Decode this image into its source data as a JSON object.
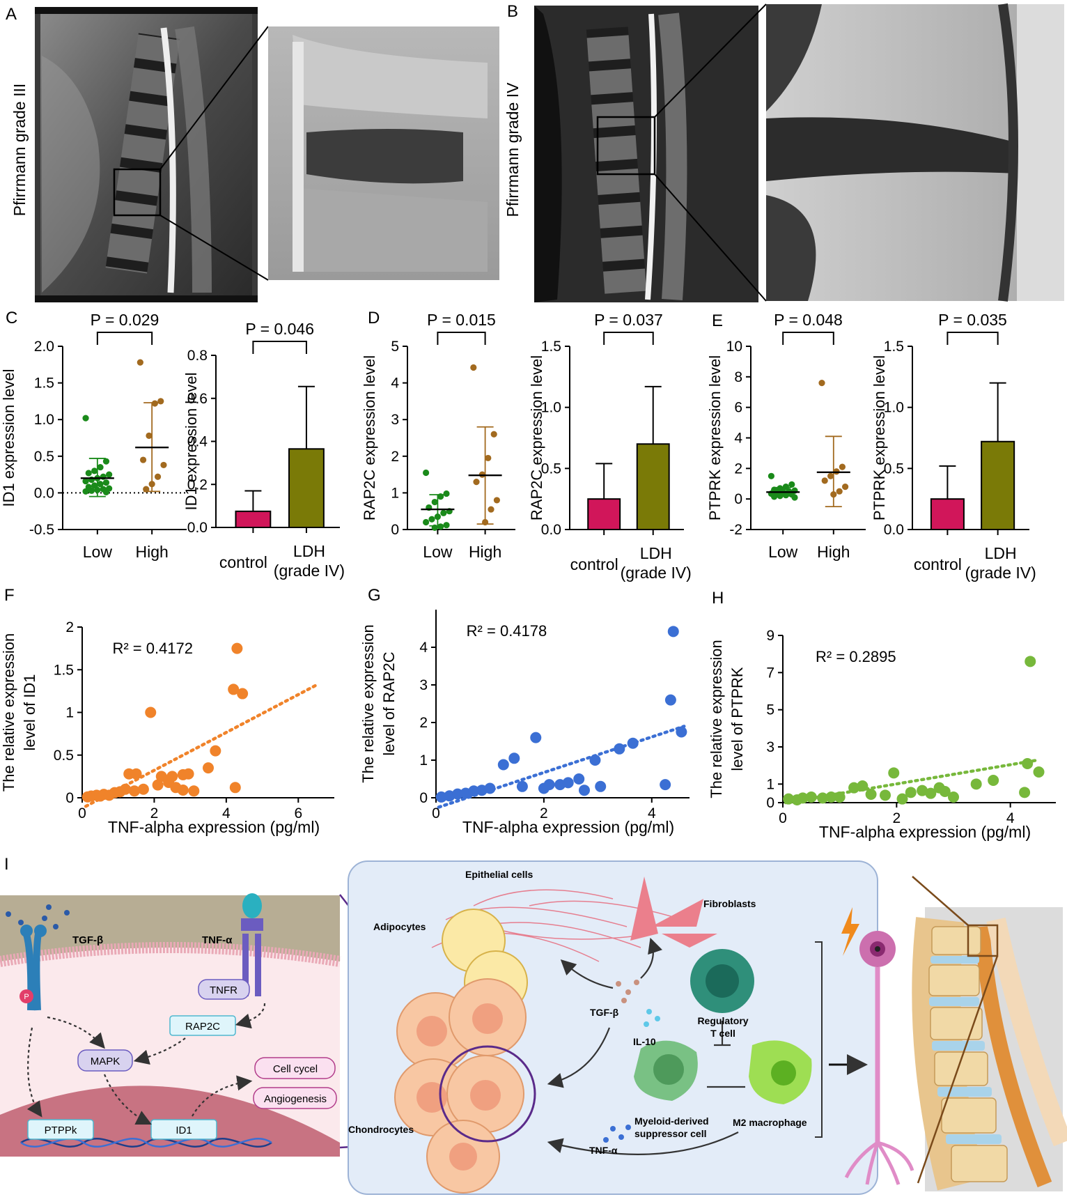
{
  "panels": {
    "A": {
      "letter": "A",
      "label": "Pfirrmann grade III"
    },
    "B": {
      "letter": "B",
      "label": "Pfirrmann grade IV"
    },
    "C": {
      "letter": "C"
    },
    "D": {
      "letter": "D"
    },
    "E": {
      "letter": "E"
    },
    "F": {
      "letter": "F"
    },
    "G": {
      "letter": "G"
    },
    "H": {
      "letter": "H"
    },
    "I": {
      "letter": "I"
    }
  },
  "colors": {
    "green": "#1a8a1a",
    "brown": "#a26a1f",
    "magenta": "#d1165a",
    "olive": "#7a7a07",
    "orange": "#f0832a",
    "blue": "#3b6fd4",
    "lightgreen": "#77b83b"
  },
  "chart_data": [
    {
      "id": "C1",
      "type": "scatter",
      "ylabel": "ID1 expression level",
      "categories": [
        "Low",
        "High"
      ],
      "ylim": [
        -0.5,
        2.0
      ],
      "yticks": [
        "-0.5",
        "0.0",
        "0.5",
        "1.0",
        "1.5",
        "2.0"
      ],
      "pvalue": "P = 0.029",
      "zero_dotted": true,
      "groups": [
        {
          "name": "Low",
          "mean": 0.2,
          "sd_low": -0.05,
          "sd_high": 0.47,
          "points": [
            1.02,
            0.43,
            0.35,
            0.3,
            0.27,
            0.25,
            0.22,
            0.2,
            0.18,
            0.16,
            0.14,
            0.12,
            0.1,
            0.08,
            0.06,
            0.05,
            0.04,
            0.03,
            0.02,
            0.01
          ]
        },
        {
          "name": "High",
          "mean": 0.62,
          "sd_low": 0.02,
          "sd_high": 1.23,
          "points": [
            1.78,
            1.25,
            1.22,
            0.78,
            0.45,
            0.38,
            0.22,
            0.12,
            0.05
          ]
        }
      ]
    },
    {
      "id": "C2",
      "type": "bar",
      "ylabel": "ID1 expression level",
      "categories": [
        "control",
        "LDH (grade IV)"
      ],
      "ylim": [
        0,
        0.8
      ],
      "yticks": [
        "0.0",
        "0.2",
        "0.4",
        "0.6",
        "0.8"
      ],
      "pvalue": "P = 0.046",
      "values": [
        0.075,
        0.365
      ],
      "errors": [
        0.17,
        0.655
      ]
    },
    {
      "id": "D1",
      "type": "scatter",
      "ylabel": "RAP2C expression level",
      "categories": [
        "Low",
        "High"
      ],
      "ylim": [
        0,
        5
      ],
      "yticks": [
        "0",
        "1",
        "2",
        "3",
        "4",
        "5"
      ],
      "pvalue": "P = 0.015",
      "zero_dotted": false,
      "groups": [
        {
          "name": "Low",
          "mean": 0.55,
          "sd_low": 0.1,
          "sd_high": 0.95,
          "points": [
            1.55,
            0.98,
            0.9,
            0.75,
            0.6,
            0.5,
            0.45,
            0.35,
            0.28,
            0.2,
            0.12,
            0.08,
            0.05
          ]
        },
        {
          "name": "High",
          "mean": 1.48,
          "sd_low": 0.15,
          "sd_high": 2.8,
          "points": [
            4.42,
            2.6,
            1.95,
            1.5,
            1.3,
            0.8,
            0.55,
            0.2
          ]
        }
      ]
    },
    {
      "id": "D2",
      "type": "bar",
      "ylabel": "RAP2C expression level",
      "categories": [
        "control",
        "LDH (grade IV)"
      ],
      "ylim": [
        0,
        1.5
      ],
      "yticks": [
        "0.0",
        "0.5",
        "1.0",
        "1.5"
      ],
      "pvalue": "P = 0.037",
      "values": [
        0.25,
        0.7
      ],
      "errors": [
        0.54,
        1.17
      ]
    },
    {
      "id": "E1",
      "type": "scatter",
      "ylabel": "PTPRK expression level",
      "categories": [
        "Low",
        "High"
      ],
      "ylim": [
        -2,
        10
      ],
      "yticks": [
        "-2",
        "0",
        "2",
        "4",
        "6",
        "8",
        "10"
      ],
      "pvalue": "P = 0.048",
      "zero_dotted": false,
      "groups": [
        {
          "name": "Low",
          "mean": 0.45,
          "sd_low": 0.2,
          "sd_high": 0.75,
          "points": [
            1.5,
            0.95,
            0.8,
            0.7,
            0.6,
            0.55,
            0.5,
            0.45,
            0.4,
            0.35,
            0.3,
            0.25,
            0.2,
            0.15,
            0.1
          ]
        },
        {
          "name": "High",
          "mean": 1.75,
          "sd_low": -0.5,
          "sd_high": 4.1,
          "points": [
            7.6,
            2.1,
            1.8,
            1.5,
            1.2,
            0.8,
            0.5,
            0.3
          ]
        }
      ]
    },
    {
      "id": "E2",
      "type": "bar",
      "ylabel": "PTPRK expression level",
      "categories": [
        "control",
        "LDH (grade IV)"
      ],
      "ylim": [
        0,
        1.5
      ],
      "yticks": [
        "0.0",
        "0.5",
        "1.0",
        "1.5"
      ],
      "pvalue": "P = 0.035",
      "values": [
        0.25,
        0.72
      ],
      "errors": [
        0.52,
        1.2
      ]
    },
    {
      "id": "F",
      "type": "scatter",
      "xlabel": "TNF-alpha expression (pg/ml)",
      "ylabel": "The relative expression level of ID1",
      "xlim": [
        0,
        7
      ],
      "ylim": [
        0,
        2
      ],
      "xticks": [
        "0",
        "2",
        "4",
        "6"
      ],
      "yticks": [
        "0",
        "0.5",
        "1",
        "1.5",
        "2"
      ],
      "r2": "R² = 0.4172",
      "trend": [
        [
          0.1,
          -0.1
        ],
        [
          6.5,
          1.32
        ]
      ],
      "points": [
        [
          0.15,
          0.01
        ],
        [
          0.25,
          0.02
        ],
        [
          0.4,
          0.03
        ],
        [
          0.5,
          0.02
        ],
        [
          0.6,
          0.04
        ],
        [
          0.75,
          0.03
        ],
        [
          0.9,
          0.06
        ],
        [
          1.05,
          0.07
        ],
        [
          1.2,
          0.1
        ],
        [
          1.3,
          0.28
        ],
        [
          1.5,
          0.28
        ],
        [
          1.45,
          0.08
        ],
        [
          1.7,
          0.1
        ],
        [
          1.9,
          1.0
        ],
        [
          2.1,
          0.15
        ],
        [
          2.2,
          0.25
        ],
        [
          2.4,
          0.18
        ],
        [
          2.5,
          0.25
        ],
        [
          2.6,
          0.12
        ],
        [
          2.8,
          0.27
        ],
        [
          2.95,
          0.28
        ],
        [
          2.8,
          0.09
        ],
        [
          3.1,
          0.08
        ],
        [
          3.5,
          0.35
        ],
        [
          3.7,
          0.55
        ],
        [
          4.2,
          1.27
        ],
        [
          4.3,
          1.75
        ],
        [
          4.45,
          1.22
        ],
        [
          4.25,
          0.12
        ]
      ]
    },
    {
      "id": "G",
      "type": "scatter",
      "xlabel": "TNF-alpha expression (pg/ml)",
      "ylabel": "The relative expression level of  RAP2C",
      "xlim": [
        0,
        4.7
      ],
      "ylim": [
        0,
        5
      ],
      "xticks": [
        "0",
        "2",
        "4"
      ],
      "yticks": [
        "0",
        "1",
        "2",
        "3",
        "4"
      ],
      "r2": "R² = 0.4178",
      "trend": [
        [
          0.05,
          -0.25
        ],
        [
          4.6,
          1.9
        ]
      ],
      "points": [
        [
          0.1,
          0.02
        ],
        [
          0.25,
          0.05
        ],
        [
          0.4,
          0.1
        ],
        [
          0.55,
          0.12
        ],
        [
          0.7,
          0.18
        ],
        [
          0.85,
          0.2
        ],
        [
          1.0,
          0.25
        ],
        [
          1.25,
          0.88
        ],
        [
          1.45,
          1.05
        ],
        [
          1.6,
          0.3
        ],
        [
          1.85,
          1.6
        ],
        [
          2.0,
          0.25
        ],
        [
          2.1,
          0.35
        ],
        [
          2.3,
          0.35
        ],
        [
          2.45,
          0.4
        ],
        [
          2.65,
          0.5
        ],
        [
          2.75,
          0.2
        ],
        [
          2.95,
          1.0
        ],
        [
          3.05,
          0.3
        ],
        [
          3.4,
          1.3
        ],
        [
          3.65,
          1.45
        ],
        [
          4.25,
          0.35
        ],
        [
          4.35,
          2.6
        ],
        [
          4.4,
          4.42
        ],
        [
          4.55,
          1.75
        ]
      ]
    },
    {
      "id": "H",
      "type": "scatter",
      "xlabel": "TNF-alpha expression (pg/ml)",
      "ylabel": "The relative expression level of  PTPRK",
      "xlim": [
        0,
        4.8
      ],
      "ylim": [
        0,
        9
      ],
      "xticks": [
        "0",
        "2",
        "4"
      ],
      "yticks": [
        "0",
        "1",
        "3",
        "5",
        "7",
        "9"
      ],
      "r2": "R² = 0.2895",
      "trend": [
        [
          0.05,
          0.0
        ],
        [
          4.5,
          2.3
        ]
      ],
      "points": [
        [
          0.1,
          0.2
        ],
        [
          0.25,
          0.15
        ],
        [
          0.35,
          0.25
        ],
        [
          0.5,
          0.3
        ],
        [
          0.7,
          0.25
        ],
        [
          0.85,
          0.3
        ],
        [
          1.0,
          0.3
        ],
        [
          1.25,
          0.8
        ],
        [
          1.4,
          0.9
        ],
        [
          1.55,
          0.45
        ],
        [
          1.8,
          0.4
        ],
        [
          1.95,
          1.6
        ],
        [
          2.1,
          0.2
        ],
        [
          2.25,
          0.55
        ],
        [
          2.45,
          0.65
        ],
        [
          2.6,
          0.5
        ],
        [
          2.75,
          0.8
        ],
        [
          2.85,
          0.6
        ],
        [
          3.0,
          0.3
        ],
        [
          3.4,
          1.0
        ],
        [
          3.7,
          1.2
        ],
        [
          4.25,
          0.55
        ],
        [
          4.3,
          2.1
        ],
        [
          4.35,
          7.6
        ],
        [
          4.5,
          1.65
        ]
      ]
    }
  ],
  "diagram": {
    "receptors": {
      "tgf": "TGF-β",
      "tnf": "TNF-α",
      "tnfr": "TNFR",
      "p": "P"
    },
    "nodes": {
      "rap2c": "RAP2C",
      "mapk": "MAPK",
      "ptppk": "PTPPk",
      "id1": "ID1",
      "cycle": "Cell cycel",
      "angio": "Angiogenesis"
    },
    "cells": {
      "epithelial": "Epithelial cells",
      "fibro": "Fibroblasts",
      "adipo": "Adipocytes",
      "tgf": "TGF-β",
      "il10": "IL-10",
      "treg1": "Regulatory",
      "treg2": "T cell",
      "mdsc1": "Myeloid-derived",
      "mdsc2": "suppressor cell",
      "m2": "M2 macrophage",
      "chondro": "Chondrocytes",
      "tnf": "TNF-α"
    }
  }
}
